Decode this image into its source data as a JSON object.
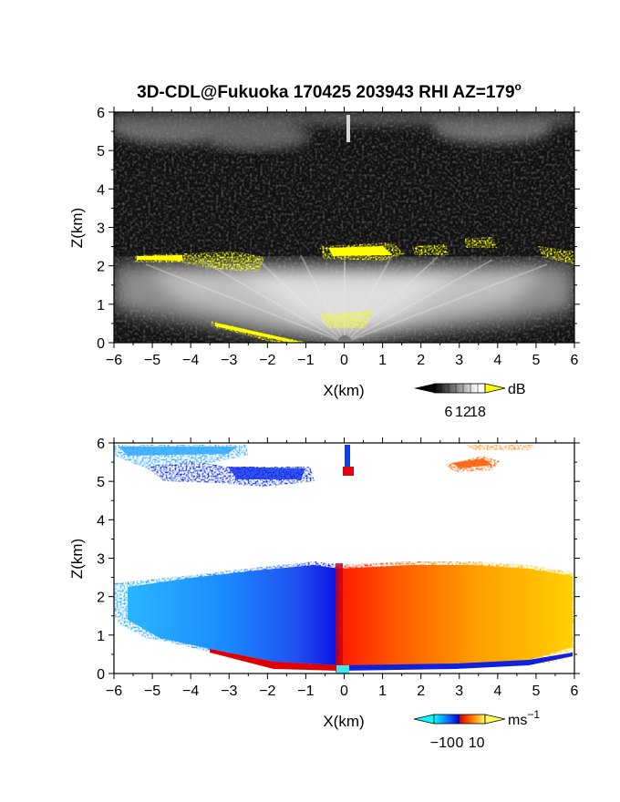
{
  "title": "3D-CDL@Fukuoka 170425 203943 RHI AZ=179",
  "title_superscript": "o",
  "chart_data": [
    {
      "type": "heatmap",
      "name": "reflectivity",
      "title": "3D-CDL@Fukuoka 170425 203943 RHI AZ=179o",
      "xlabel": "X(km)",
      "ylabel": "Z(km)",
      "xlim": [
        -6,
        6
      ],
      "ylim": [
        0,
        6
      ],
      "xticks": [
        -6,
        -5,
        -4,
        -3,
        -2,
        -1,
        0,
        1,
        2,
        3,
        4,
        5,
        6
      ],
      "yticks": [
        0,
        1,
        2,
        3,
        4,
        5,
        6
      ],
      "colorscale": "grayscale with yellow above max",
      "colorbar": {
        "unit": "dB",
        "ticks": [
          6,
          12,
          18
        ],
        "range": [
          0,
          21
        ],
        "over_color": "#ffff00"
      },
      "features": [
        {
          "label": "cloud-base echo (yellow)",
          "x_range": [
            -5.6,
            6.0
          ],
          "z_range": [
            1.9,
            2.7
          ]
        },
        {
          "label": "upper cloud layer",
          "x_range": [
            -6.0,
            6.0
          ],
          "z_range": [
            4.9,
            6.0
          ]
        },
        {
          "label": "boundary layer echo",
          "x_range": [
            -6.0,
            6.0
          ],
          "z_range": [
            0.0,
            2.2
          ]
        }
      ]
    },
    {
      "type": "heatmap",
      "name": "doppler_velocity",
      "xlabel": "X(km)",
      "ylabel": "Z(km)",
      "xlim": [
        -6,
        6
      ],
      "ylim": [
        0,
        6
      ],
      "xticks": [
        -6,
        -5,
        -4,
        -3,
        -2,
        -1,
        0,
        1,
        2,
        3,
        4,
        5,
        6
      ],
      "yticks": [
        0,
        1,
        2,
        3,
        4,
        5,
        6
      ],
      "colorscale": "cyan-blue-red-yellow diverging",
      "colorbar": {
        "unit": "ms",
        "unit_superscript": "−1",
        "ticks": [
          -10,
          0,
          10
        ],
        "tick_labels": [
          "−10",
          "0",
          "10"
        ],
        "range": [
          -15,
          15
        ]
      },
      "features": [
        {
          "label": "negative velocity region",
          "x_range": [
            -6.0,
            -0.1
          ],
          "z_range": [
            0.0,
            2.8
          ],
          "value_range": [
            -12,
            -4
          ]
        },
        {
          "label": "positive velocity region",
          "x_range": [
            -0.1,
            6.0
          ],
          "z_range": [
            0.0,
            2.8
          ],
          "value_range": [
            2,
            12
          ]
        },
        {
          "label": "upper cloud negative",
          "x_range": [
            -6.0,
            -0.8
          ],
          "z_range": [
            5.0,
            6.0
          ],
          "value_range": [
            -11,
            -6
          ]
        },
        {
          "label": "upper cloud positive",
          "x_range": [
            2.6,
            5.0
          ],
          "z_range": [
            5.4,
            6.0
          ],
          "value_range": [
            5,
            8
          ]
        }
      ]
    }
  ],
  "colors": {
    "background": "#000000",
    "echo_max": "#ffff00",
    "neg_strong": "#00c8ff",
    "neg_weak": "#0000ff",
    "pos_weak": "#ff0000",
    "pos_strong": "#ffff00"
  }
}
